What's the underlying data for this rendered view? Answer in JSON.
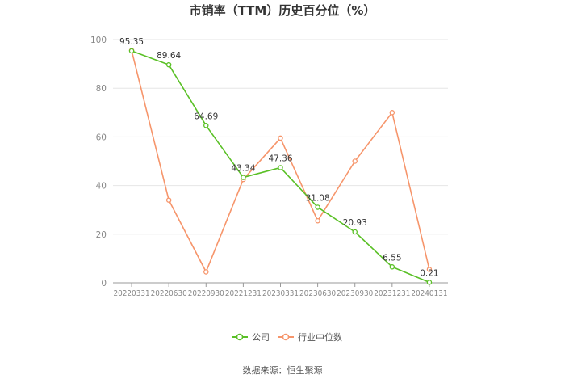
{
  "chart_data": {
    "type": "line",
    "title": "市销率（TTM）历史百分位（%）",
    "categories": [
      "20220331",
      "20220630",
      "20220930",
      "20221231",
      "20230331",
      "20230630",
      "20230930",
      "20231231",
      "20240131"
    ],
    "ylim": [
      0,
      100
    ],
    "yticks": [
      0,
      20,
      40,
      60,
      80,
      100
    ],
    "grid": true,
    "legend_position": "bottom",
    "series": [
      {
        "name": "公司",
        "color": "#5ac026",
        "values": [
          95.35,
          89.64,
          64.69,
          43.34,
          47.36,
          31.08,
          20.93,
          6.55,
          0.21
        ],
        "labels": [
          "95.35",
          "89.64",
          "64.69",
          "43.34",
          "47.36",
          "31.08",
          "20.93",
          "6.55",
          "0.21"
        ]
      },
      {
        "name": "行业中位数",
        "color": "#f6956b",
        "values": [
          95.5,
          34,
          4.5,
          42.5,
          59.5,
          25.5,
          50,
          70,
          5.5
        ]
      }
    ],
    "source": "数据来源：恒生聚源"
  }
}
